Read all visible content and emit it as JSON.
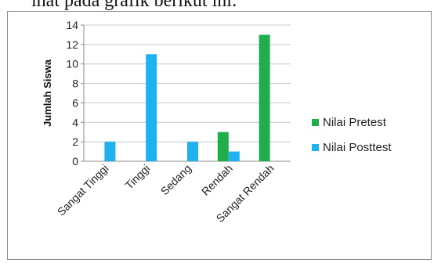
{
  "caption": "ihat pada grafik berikut ini:",
  "chart_data": {
    "type": "bar",
    "title": "",
    "xlabel": "",
    "ylabel": "Jumlah Siswa",
    "ylim": [
      0,
      14
    ],
    "yticks": [
      0,
      2,
      4,
      6,
      8,
      10,
      12,
      14
    ],
    "grid": "horizontal",
    "legend_position": "right",
    "categories": [
      "Sangat Tinggi",
      "Tinggi",
      "Sedang",
      "Rendah",
      "Sangat Rendah"
    ],
    "series": [
      {
        "name": "Nilai Pretest",
        "color": "#1fae4b",
        "values": [
          0,
          0,
          0,
          3,
          13
        ]
      },
      {
        "name": "Nilai Posttest",
        "color": "#1fb2ef",
        "values": [
          2,
          11,
          2,
          1,
          0
        ]
      }
    ]
  }
}
